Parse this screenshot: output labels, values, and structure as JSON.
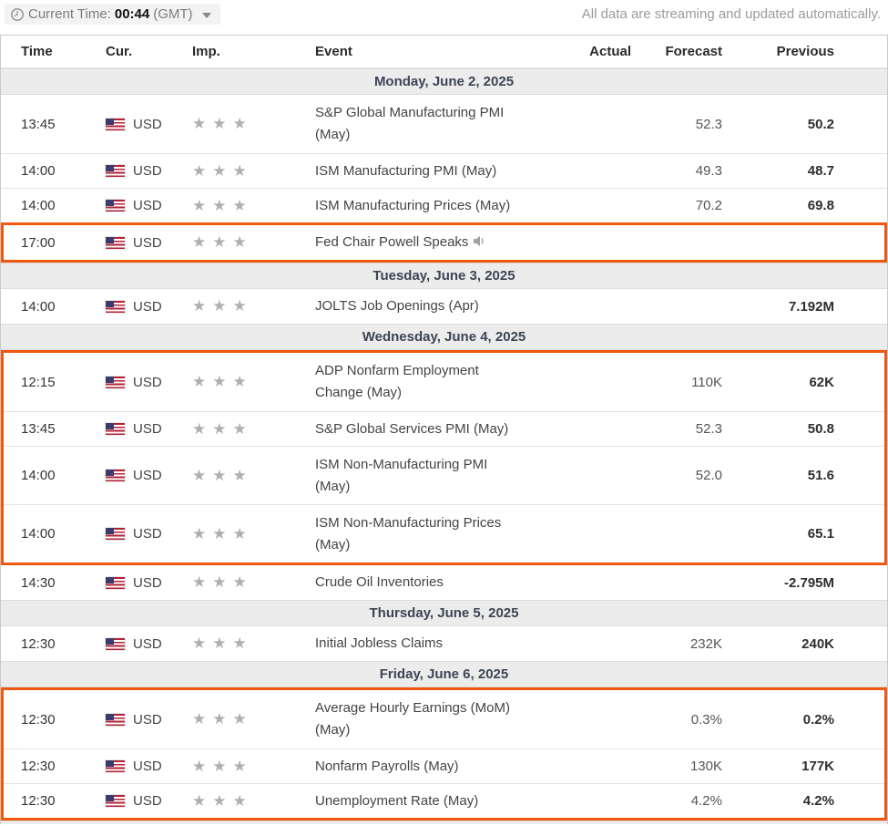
{
  "topbar": {
    "clock_icon": "clock-icon",
    "current_time_label": "Current Time:",
    "current_time_value": "00:44",
    "timezone_label": "(GMT)",
    "dropdown_icon": "chevron-down-icon",
    "streaming_note": "All data are streaming and updated automatically."
  },
  "colors": {
    "highlight_border": "#F0570F",
    "day_header_bg": "#ECECEC",
    "star_gray": "#AFAFAF"
  },
  "table": {
    "columns": [
      "Time",
      "Cur.",
      "Imp.",
      "Event",
      "Actual",
      "Forecast",
      "Previous"
    ],
    "sections": [
      {
        "date": "Monday, June 2, 2025",
        "rows": [
          {
            "time": "13:45",
            "flag": "us-flag",
            "currency": "USD",
            "importance": 3,
            "event": "S&P Global Manufacturing PMI (May)",
            "speaker": false,
            "actual": "",
            "forecast": "52.3",
            "previous": "50.2",
            "highlight": false,
            "two_line": true
          },
          {
            "time": "14:00",
            "flag": "us-flag",
            "currency": "USD",
            "importance": 3,
            "event": "ISM Manufacturing PMI (May)",
            "speaker": false,
            "actual": "",
            "forecast": "49.3",
            "previous": "48.7",
            "highlight": false,
            "two_line": false
          },
          {
            "time": "14:00",
            "flag": "us-flag",
            "currency": "USD",
            "importance": 3,
            "event": "ISM Manufacturing Prices (May)",
            "speaker": false,
            "actual": "",
            "forecast": "70.2",
            "previous": "69.8",
            "highlight": false,
            "two_line": false
          },
          {
            "time": "17:00",
            "flag": "us-flag",
            "currency": "USD",
            "importance": 3,
            "event": "Fed Chair Powell Speaks",
            "speaker": true,
            "actual": "",
            "forecast": "",
            "previous": "",
            "highlight": true,
            "two_line": false
          }
        ]
      },
      {
        "date": "Tuesday, June 3, 2025",
        "rows": [
          {
            "time": "14:00",
            "flag": "us-flag",
            "currency": "USD",
            "importance": 3,
            "event": "JOLTS Job Openings (Apr)",
            "speaker": false,
            "actual": "",
            "forecast": "",
            "previous": "7.192M",
            "highlight": false,
            "two_line": false
          }
        ]
      },
      {
        "date": "Wednesday, June 4, 2025",
        "rows": [
          {
            "time": "12:15",
            "flag": "us-flag",
            "currency": "USD",
            "importance": 3,
            "event": "ADP Nonfarm Employment Change (May)",
            "speaker": false,
            "actual": "",
            "forecast": "110K",
            "previous": "62K",
            "highlight": true,
            "two_line": true
          },
          {
            "time": "13:45",
            "flag": "us-flag",
            "currency": "USD",
            "importance": 3,
            "event": "S&P Global Services PMI (May)",
            "speaker": false,
            "actual": "",
            "forecast": "52.3",
            "previous": "50.8",
            "highlight": true,
            "two_line": false
          },
          {
            "time": "14:00",
            "flag": "us-flag",
            "currency": "USD",
            "importance": 3,
            "event": "ISM Non-Manufacturing PMI (May)",
            "speaker": false,
            "actual": "",
            "forecast": "52.0",
            "previous": "51.6",
            "highlight": true,
            "two_line": true
          },
          {
            "time": "14:00",
            "flag": "us-flag",
            "currency": "USD",
            "importance": 3,
            "event": "ISM Non-Manufacturing Prices (May)",
            "speaker": false,
            "actual": "",
            "forecast": "",
            "previous": "65.1",
            "highlight": true,
            "two_line": true
          },
          {
            "time": "14:30",
            "flag": "us-flag",
            "currency": "USD",
            "importance": 3,
            "event": "Crude Oil Inventories",
            "speaker": false,
            "actual": "",
            "forecast": "",
            "previous": "-2.795M",
            "highlight": false,
            "two_line": false
          }
        ]
      },
      {
        "date": "Thursday, June 5, 2025",
        "rows": [
          {
            "time": "12:30",
            "flag": "us-flag",
            "currency": "USD",
            "importance": 3,
            "event": "Initial Jobless Claims",
            "speaker": false,
            "actual": "",
            "forecast": "232K",
            "previous": "240K",
            "highlight": false,
            "two_line": false
          }
        ]
      },
      {
        "date": "Friday, June 6, 2025",
        "rows": [
          {
            "time": "12:30",
            "flag": "us-flag",
            "currency": "USD",
            "importance": 3,
            "event": "Average Hourly Earnings (MoM) (May)",
            "speaker": false,
            "actual": "",
            "forecast": "0.3%",
            "previous": "0.2%",
            "highlight": true,
            "two_line": true
          },
          {
            "time": "12:30",
            "flag": "us-flag",
            "currency": "USD",
            "importance": 3,
            "event": "Nonfarm Payrolls (May)",
            "speaker": false,
            "actual": "",
            "forecast": "130K",
            "previous": "177K",
            "highlight": true,
            "two_line": false
          },
          {
            "time": "12:30",
            "flag": "us-flag",
            "currency": "USD",
            "importance": 3,
            "event": "Unemployment Rate (May)",
            "speaker": false,
            "actual": "",
            "forecast": "4.2%",
            "previous": "4.2%",
            "highlight": true,
            "two_line": false
          }
        ]
      }
    ]
  }
}
